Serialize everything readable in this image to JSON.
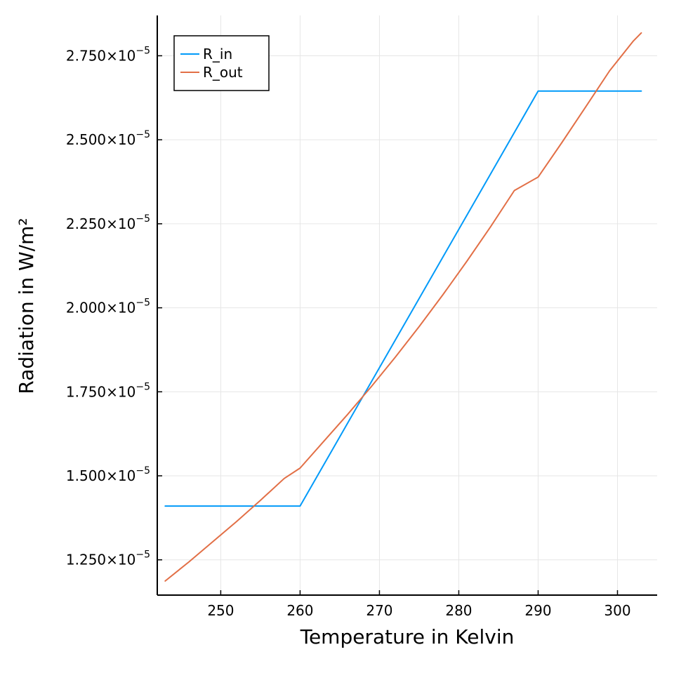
{
  "chart_data": {
    "type": "line",
    "xlabel": "Temperature in Kelvin",
    "ylabel": "Radiation in W/m²",
    "xlim": [
      242.0,
      305.0
    ],
    "ylim": [
      1.145e-05,
      2.87e-05
    ],
    "x_ticks": [
      250,
      260,
      270,
      280,
      290,
      300
    ],
    "y_ticks": [
      {
        "value": 1.25e-05,
        "mantissa": "1.250×10",
        "exponent": "−5"
      },
      {
        "value": 1.5e-05,
        "mantissa": "1.500×10",
        "exponent": "−5"
      },
      {
        "value": 1.75e-05,
        "mantissa": "1.750×10",
        "exponent": "−5"
      },
      {
        "value": 2e-05,
        "mantissa": "2.000×10",
        "exponent": "−5"
      },
      {
        "value": 2.25e-05,
        "mantissa": "2.250×10",
        "exponent": "−5"
      },
      {
        "value": 2.5e-05,
        "mantissa": "2.500×10",
        "exponent": "−5"
      },
      {
        "value": 2.75e-05,
        "mantissa": "2.750×10",
        "exponent": "−5"
      }
    ],
    "grid": true,
    "legend_position": "top-left",
    "series": [
      {
        "name": "R_in",
        "color": "#009AF9",
        "x": [
          243,
          260,
          290,
          303
        ],
        "y": [
          1.41e-05,
          1.41e-05,
          2.645e-05,
          2.645e-05
        ]
      },
      {
        "name": "R_out",
        "color": "#E26F46",
        "x": [
          243,
          246,
          249,
          252,
          255,
          258,
          260,
          263,
          266,
          269,
          272,
          275,
          278,
          281,
          284,
          287,
          290,
          293,
          296,
          299,
          302,
          303
        ],
        "y": [
          1.187e-05,
          1.244e-05,
          1.304e-05,
          1.364e-05,
          1.427e-05,
          1.492e-05,
          1.523e-05,
          1.603e-05,
          1.683e-05,
          1.766e-05,
          1.853e-05,
          1.944e-05,
          2.039e-05,
          2.138e-05,
          2.241e-05,
          2.349e-05,
          2.389e-05,
          2.492e-05,
          2.598e-05,
          2.705e-05,
          2.794e-05,
          2.818e-05
        ]
      }
    ]
  }
}
